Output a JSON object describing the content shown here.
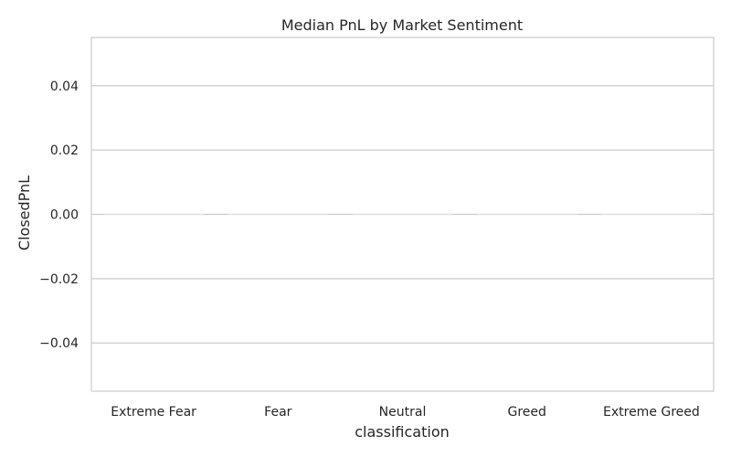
{
  "chart_data": {
    "type": "bar",
    "title": "Median PnL by Market Sentiment",
    "xlabel": "classification",
    "ylabel": "ClosedPnL",
    "categories": [
      "Extreme Fear",
      "Fear",
      "Neutral",
      "Greed",
      "Extreme Greed"
    ],
    "values": [
      0,
      0,
      0,
      0,
      0
    ],
    "ylim": [
      -0.055,
      0.055
    ],
    "yticks": [
      -0.04,
      -0.02,
      0.0,
      0.02,
      0.04
    ],
    "ytick_labels": [
      "−0.04",
      "−0.02",
      "0.00",
      "0.02",
      "0.04"
    ],
    "grid": "y",
    "legend": "none",
    "colors": {
      "grid": "#cccccc",
      "frame": "#cccccc",
      "bar": "#e0e0e0",
      "text": "#262626"
    }
  }
}
